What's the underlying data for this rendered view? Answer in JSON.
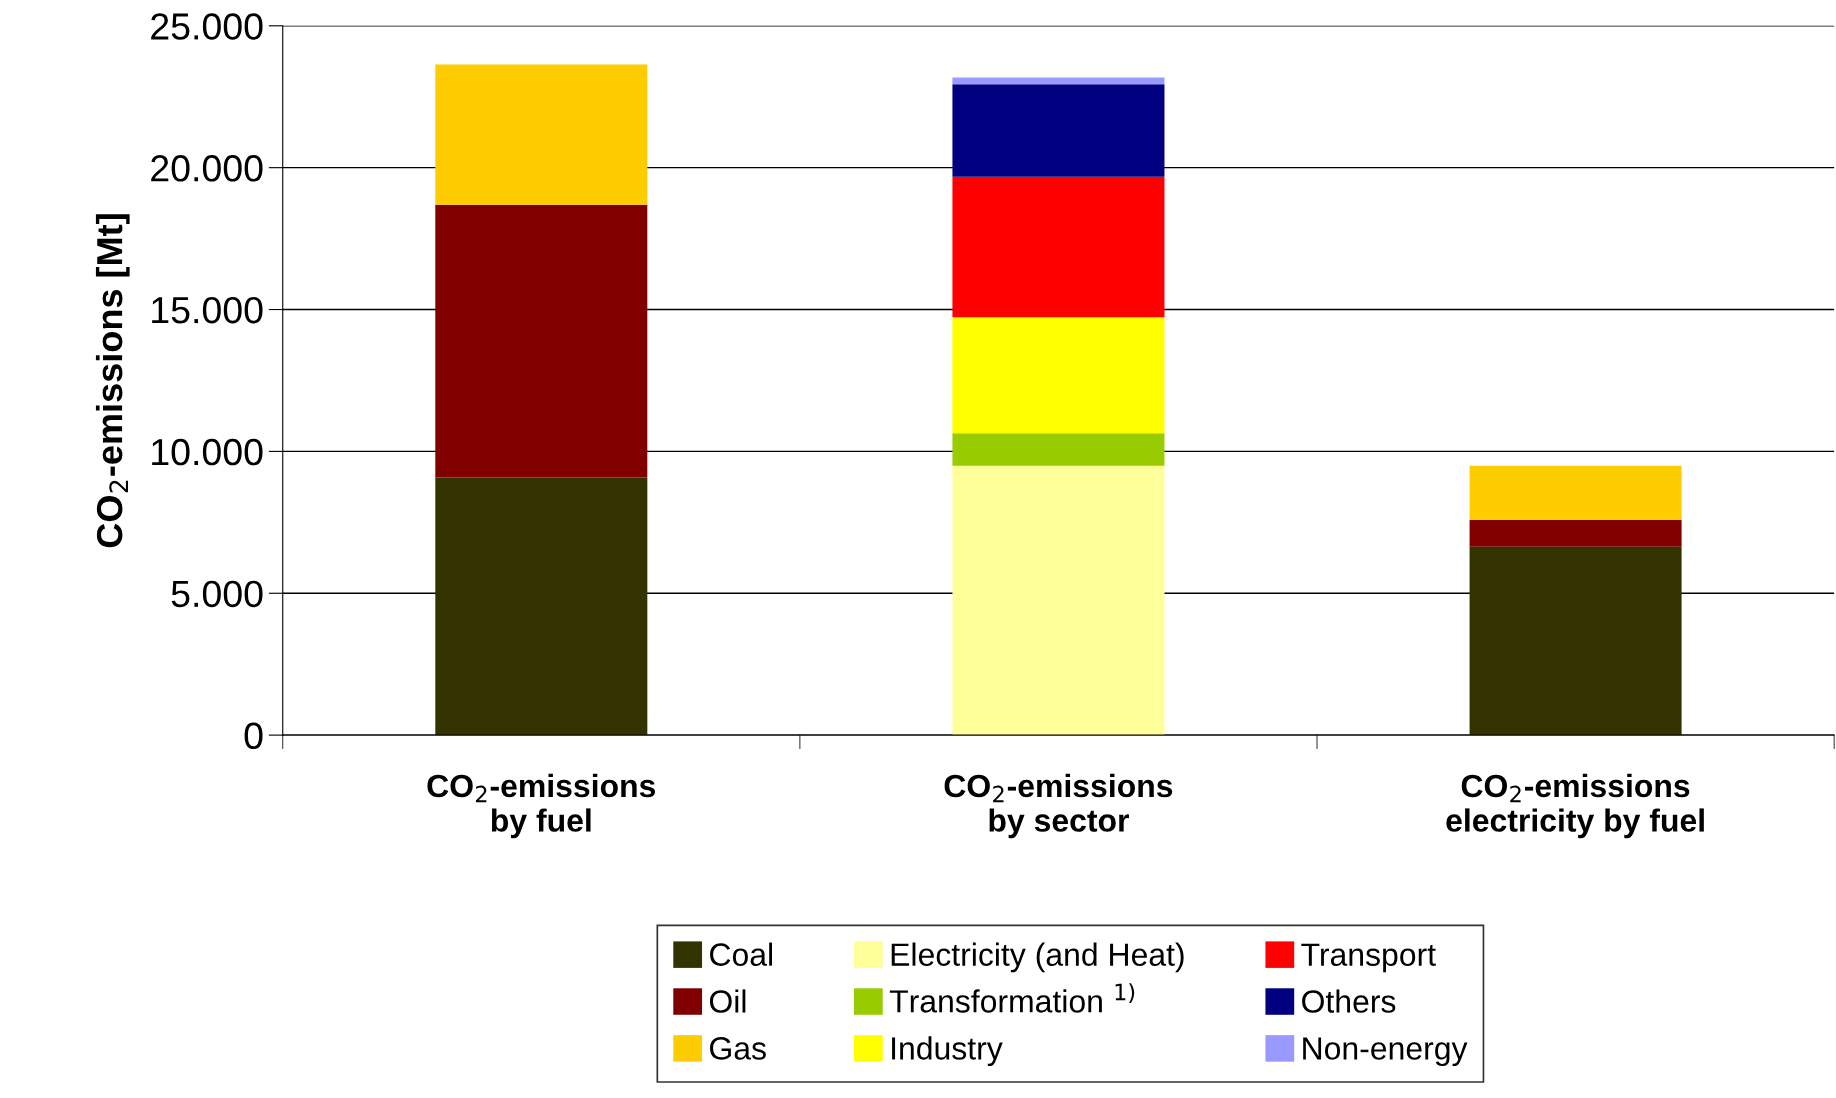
{
  "chart_data": {
    "type": "bar",
    "stacked": true,
    "ylabel": "CO$_{2}$-emissions [Mt]",
    "categories": [
      "CO$_{2}$-emissions\nby fuel",
      "CO$_{2}$-emissions\nby sector",
      "CO$_{2}$-emissions\nelectricity by fuel"
    ],
    "series": [
      {
        "name": "Coal",
        "color": "#333300",
        "values": [
          9080,
          null,
          6640
        ]
      },
      {
        "name": "Oil",
        "color": "#800000",
        "values": [
          9610,
          null,
          950
        ]
      },
      {
        "name": "Gas",
        "color": "#ffcc00",
        "values": [
          4950,
          null,
          1900
        ]
      },
      {
        "name": "Electricity (and Heat)",
        "color": "#ffff99",
        "values": [
          null,
          9490,
          null
        ]
      },
      {
        "name": "Transformation $^{1)}$",
        "color": "#99cc00",
        "values": [
          null,
          1150,
          null
        ]
      },
      {
        "name": "Industry",
        "color": "#ffff00",
        "values": [
          null,
          4090,
          null
        ]
      },
      {
        "name": "Transport",
        "color": "#ff0000",
        "values": [
          null,
          4950,
          null
        ]
      },
      {
        "name": "Others",
        "color": "#000080",
        "values": [
          null,
          3260,
          null
        ]
      },
      {
        "name": "Non-energy",
        "color": "#9999ff",
        "values": [
          null,
          240,
          null
        ]
      }
    ],
    "ylim": [
      0,
      25000
    ],
    "yticks": [
      {
        "value": 0,
        "label": "0"
      },
      {
        "value": 5000,
        "label": "5.000"
      },
      {
        "value": 10000,
        "label": "10.000"
      },
      {
        "value": 15000,
        "label": "15.000"
      },
      {
        "value": 20000,
        "label": "20.000"
      },
      {
        "value": 25000,
        "label": "25.000"
      }
    ],
    "grid": "y",
    "legend": "bottom"
  }
}
